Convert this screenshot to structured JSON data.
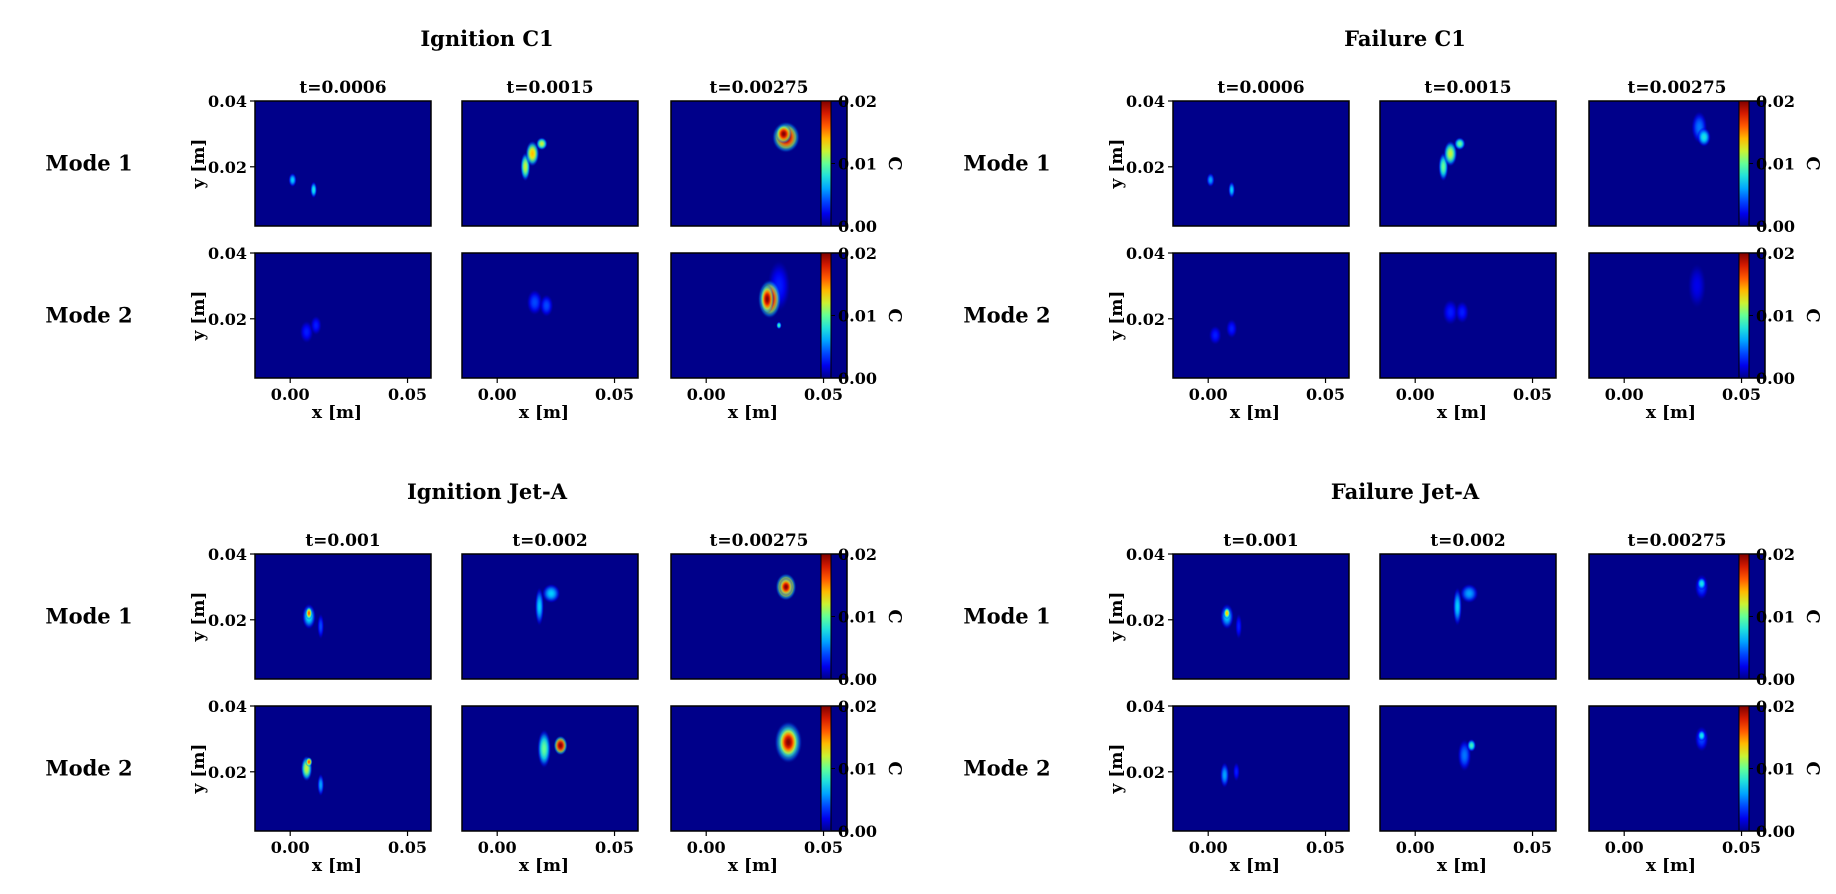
{
  "colors": {
    "field_background": "#00008a",
    "colormap": "jet",
    "frame": "#000000"
  },
  "chart_data": [
    {
      "type": "heatmap",
      "title": "Ignition C1",
      "times": [
        "t=0.0006",
        "t=0.0015",
        "t=0.00275"
      ],
      "rows": [
        {
          "label": "Mode 1",
          "panels": [
            {
              "blobs": [
                {
                  "x": 0.001,
                  "y": 0.016,
                  "rx": 0.0018,
                  "ry": 0.0022,
                  "value": 0.007
                },
                {
                  "x": 0.01,
                  "y": 0.013,
                  "rx": 0.0015,
                  "ry": 0.0026,
                  "value": 0.008
                }
              ]
            },
            {
              "blobs": [
                {
                  "x": 0.012,
                  "y": 0.02,
                  "rx": 0.0022,
                  "ry": 0.0045,
                  "value": 0.012
                },
                {
                  "x": 0.015,
                  "y": 0.024,
                  "rx": 0.003,
                  "ry": 0.004,
                  "value": 0.014
                },
                {
                  "x": 0.019,
                  "y": 0.027,
                  "rx": 0.0025,
                  "ry": 0.002,
                  "value": 0.012
                }
              ]
            },
            {
              "blobs": [
                {
                  "x": 0.034,
                  "y": 0.029,
                  "rx": 0.006,
                  "ry": 0.0048,
                  "value": 0.02
                },
                {
                  "x": 0.033,
                  "y": 0.03,
                  "rx": 0.0035,
                  "ry": 0.003,
                  "value": 0.025
                }
              ]
            }
          ]
        },
        {
          "label": "Mode 2",
          "panels": [
            {
              "blobs": [
                {
                  "x": 0.007,
                  "y": 0.016,
                  "rx": 0.003,
                  "ry": 0.0035,
                  "value": 0.003
                },
                {
                  "x": 0.011,
                  "y": 0.018,
                  "rx": 0.0025,
                  "ry": 0.003,
                  "value": 0.003
                }
              ]
            },
            {
              "blobs": [
                {
                  "x": 0.016,
                  "y": 0.025,
                  "rx": 0.0035,
                  "ry": 0.004,
                  "value": 0.004
                },
                {
                  "x": 0.021,
                  "y": 0.024,
                  "rx": 0.003,
                  "ry": 0.0035,
                  "value": 0.004
                }
              ]
            },
            {
              "blobs": [
                {
                  "x": 0.031,
                  "y": 0.03,
                  "rx": 0.005,
                  "ry": 0.008,
                  "value": 0.003
                },
                {
                  "x": 0.027,
                  "y": 0.026,
                  "rx": 0.005,
                  "ry": 0.006,
                  "value": 0.02
                },
                {
                  "x": 0.026,
                  "y": 0.026,
                  "rx": 0.003,
                  "ry": 0.0045,
                  "value": 0.028
                },
                {
                  "x": 0.031,
                  "y": 0.018,
                  "rx": 0.0012,
                  "ry": 0.0012,
                  "value": 0.009
                }
              ]
            }
          ]
        }
      ],
      "xlabel": "x [m]",
      "ylabel": "y [m]",
      "xlim": [
        -0.015,
        0.06
      ],
      "ylim": [
        0.002,
        0.04
      ],
      "xticks": [
        "0.00",
        "0.05"
      ],
      "yticks": [
        "0.02",
        "0.04"
      ],
      "colorbar": {
        "label": "C",
        "ticks": [
          "0.00",
          "0.01",
          "0.02"
        ],
        "range": [
          0,
          0.02
        ]
      }
    },
    {
      "type": "heatmap",
      "title": "Failure C1",
      "times": [
        "t=0.0006",
        "t=0.0015",
        "t=0.00275"
      ],
      "rows": [
        {
          "label": "Mode 1",
          "panels": [
            {
              "blobs": [
                {
                  "x": 0.001,
                  "y": 0.016,
                  "rx": 0.0018,
                  "ry": 0.0022,
                  "value": 0.006
                },
                {
                  "x": 0.01,
                  "y": 0.013,
                  "rx": 0.0015,
                  "ry": 0.0026,
                  "value": 0.007
                }
              ]
            },
            {
              "blobs": [
                {
                  "x": 0.012,
                  "y": 0.02,
                  "rx": 0.0022,
                  "ry": 0.0045,
                  "value": 0.01
                },
                {
                  "x": 0.015,
                  "y": 0.024,
                  "rx": 0.003,
                  "ry": 0.004,
                  "value": 0.012
                },
                {
                  "x": 0.019,
                  "y": 0.027,
                  "rx": 0.0025,
                  "ry": 0.002,
                  "value": 0.01
                }
              ]
            },
            {
              "blobs": [
                {
                  "x": 0.032,
                  "y": 0.032,
                  "rx": 0.0035,
                  "ry": 0.005,
                  "value": 0.005
                },
                {
                  "x": 0.034,
                  "y": 0.029,
                  "rx": 0.003,
                  "ry": 0.003,
                  "value": 0.008
                }
              ]
            }
          ]
        },
        {
          "label": "Mode 2",
          "panels": [
            {
              "blobs": [
                {
                  "x": 0.003,
                  "y": 0.015,
                  "rx": 0.0028,
                  "ry": 0.003,
                  "value": 0.003
                },
                {
                  "x": 0.01,
                  "y": 0.017,
                  "rx": 0.0025,
                  "ry": 0.003,
                  "value": 0.003
                }
              ]
            },
            {
              "blobs": [
                {
                  "x": 0.015,
                  "y": 0.022,
                  "rx": 0.0035,
                  "ry": 0.004,
                  "value": 0.003
                },
                {
                  "x": 0.02,
                  "y": 0.022,
                  "rx": 0.003,
                  "ry": 0.0035,
                  "value": 0.003
                }
              ]
            },
            {
              "blobs": [
                {
                  "x": 0.031,
                  "y": 0.03,
                  "rx": 0.004,
                  "ry": 0.007,
                  "value": 0.002
                }
              ]
            }
          ]
        }
      ],
      "xlabel": "x [m]",
      "ylabel": "y [m]",
      "xlim": [
        -0.015,
        0.06
      ],
      "ylim": [
        0.002,
        0.04
      ],
      "xticks": [
        "0.00",
        "0.05"
      ],
      "yticks": [
        "0.02",
        "0.04"
      ],
      "colorbar": {
        "label": "C",
        "ticks": [
          "0.00",
          "0.01",
          "0.02"
        ],
        "range": [
          0,
          0.02
        ]
      }
    },
    {
      "type": "heatmap",
      "title": "Ignition Jet-A",
      "times": [
        "t=0.001",
        "t=0.002",
        "t=0.00275"
      ],
      "rows": [
        {
          "label": "Mode 1",
          "panels": [
            {
              "blobs": [
                {
                  "x": 0.008,
                  "y": 0.021,
                  "rx": 0.003,
                  "ry": 0.004,
                  "value": 0.008
                },
                {
                  "x": 0.008,
                  "y": 0.022,
                  "rx": 0.0015,
                  "ry": 0.002,
                  "value": 0.016
                },
                {
                  "x": 0.013,
                  "y": 0.018,
                  "rx": 0.0015,
                  "ry": 0.004,
                  "value": 0.004
                }
              ]
            },
            {
              "blobs": [
                {
                  "x": 0.018,
                  "y": 0.024,
                  "rx": 0.002,
                  "ry": 0.006,
                  "value": 0.007
                },
                {
                  "x": 0.023,
                  "y": 0.028,
                  "rx": 0.004,
                  "ry": 0.003,
                  "value": 0.007
                }
              ]
            },
            {
              "blobs": [
                {
                  "x": 0.034,
                  "y": 0.03,
                  "rx": 0.0045,
                  "ry": 0.0042,
                  "value": 0.02
                },
                {
                  "x": 0.034,
                  "y": 0.03,
                  "rx": 0.003,
                  "ry": 0.0028,
                  "value": 0.026
                }
              ]
            }
          ]
        },
        {
          "label": "Mode 2",
          "panels": [
            {
              "blobs": [
                {
                  "x": 0.007,
                  "y": 0.021,
                  "rx": 0.0025,
                  "ry": 0.004,
                  "value": 0.012
                },
                {
                  "x": 0.008,
                  "y": 0.023,
                  "rx": 0.0015,
                  "ry": 0.0015,
                  "value": 0.016
                },
                {
                  "x": 0.013,
                  "y": 0.016,
                  "rx": 0.0015,
                  "ry": 0.0035,
                  "value": 0.006
                }
              ]
            },
            {
              "blobs": [
                {
                  "x": 0.02,
                  "y": 0.027,
                  "rx": 0.003,
                  "ry": 0.006,
                  "value": 0.01
                },
                {
                  "x": 0.027,
                  "y": 0.028,
                  "rx": 0.003,
                  "ry": 0.003,
                  "value": 0.025
                }
              ]
            },
            {
              "blobs": [
                {
                  "x": 0.035,
                  "y": 0.029,
                  "rx": 0.006,
                  "ry": 0.0065,
                  "value": 0.016
                },
                {
                  "x": 0.035,
                  "y": 0.029,
                  "rx": 0.0045,
                  "ry": 0.005,
                  "value": 0.028
                }
              ]
            }
          ]
        }
      ],
      "xlabel": "x [m]",
      "ylabel": "y [m]",
      "xlim": [
        -0.015,
        0.06
      ],
      "ylim": [
        0.002,
        0.04
      ],
      "xticks": [
        "0.00",
        "0.05"
      ],
      "yticks": [
        "0.02",
        "0.04"
      ],
      "colorbar": {
        "label": "C",
        "ticks": [
          "0.00",
          "0.01",
          "0.02"
        ],
        "range": [
          0,
          0.02
        ]
      }
    },
    {
      "type": "heatmap",
      "title": "Failure Jet-A",
      "times": [
        "t=0.001",
        "t=0.002",
        "t=0.00275"
      ],
      "rows": [
        {
          "label": "Mode 1",
          "panels": [
            {
              "blobs": [
                {
                  "x": 0.008,
                  "y": 0.021,
                  "rx": 0.003,
                  "ry": 0.004,
                  "value": 0.007
                },
                {
                  "x": 0.008,
                  "y": 0.022,
                  "rx": 0.0015,
                  "ry": 0.0018,
                  "value": 0.014
                },
                {
                  "x": 0.013,
                  "y": 0.018,
                  "rx": 0.0015,
                  "ry": 0.004,
                  "value": 0.003
                }
              ]
            },
            {
              "blobs": [
                {
                  "x": 0.018,
                  "y": 0.024,
                  "rx": 0.002,
                  "ry": 0.006,
                  "value": 0.007
                },
                {
                  "x": 0.023,
                  "y": 0.028,
                  "rx": 0.004,
                  "ry": 0.003,
                  "value": 0.006
                }
              ]
            },
            {
              "blobs": [
                {
                  "x": 0.033,
                  "y": 0.03,
                  "rx": 0.003,
                  "ry": 0.004,
                  "value": 0.004
                },
                {
                  "x": 0.033,
                  "y": 0.031,
                  "rx": 0.002,
                  "ry": 0.002,
                  "value": 0.008
                }
              ]
            }
          ]
        },
        {
          "label": "Mode 2",
          "panels": [
            {
              "blobs": [
                {
                  "x": 0.007,
                  "y": 0.019,
                  "rx": 0.002,
                  "ry": 0.004,
                  "value": 0.006
                },
                {
                  "x": 0.012,
                  "y": 0.02,
                  "rx": 0.0015,
                  "ry": 0.003,
                  "value": 0.003
                }
              ]
            },
            {
              "blobs": [
                {
                  "x": 0.021,
                  "y": 0.025,
                  "rx": 0.003,
                  "ry": 0.005,
                  "value": 0.005
                },
                {
                  "x": 0.024,
                  "y": 0.028,
                  "rx": 0.002,
                  "ry": 0.002,
                  "value": 0.009
                }
              ]
            },
            {
              "blobs": [
                {
                  "x": 0.033,
                  "y": 0.03,
                  "rx": 0.003,
                  "ry": 0.004,
                  "value": 0.004
                },
                {
                  "x": 0.033,
                  "y": 0.031,
                  "rx": 0.0018,
                  "ry": 0.0018,
                  "value": 0.008
                }
              ]
            }
          ]
        }
      ],
      "xlabel": "x [m]",
      "ylabel": "y [m]",
      "xlim": [
        -0.015,
        0.06
      ],
      "ylim": [
        0.002,
        0.04
      ],
      "xticks": [
        "0.00",
        "0.05"
      ],
      "yticks": [
        "0.02",
        "0.04"
      ],
      "colorbar": {
        "label": "C",
        "ticks": [
          "0.00",
          "0.01",
          "0.02"
        ],
        "range": [
          0,
          0.02
        ]
      }
    }
  ]
}
